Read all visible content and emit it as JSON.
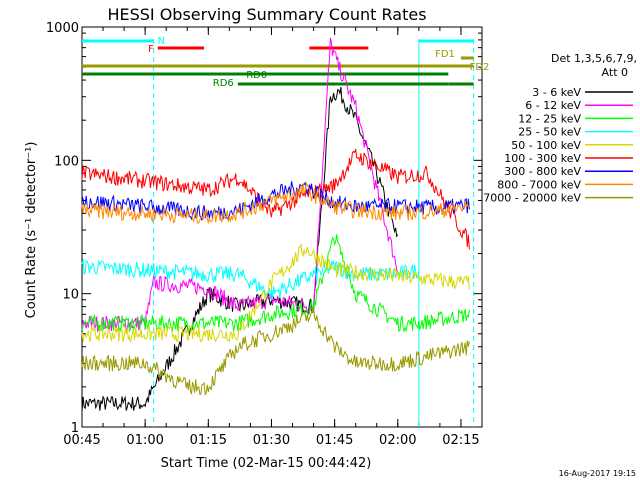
{
  "chart_data": {
    "type": "line",
    "title": "HESSI Observing Summary Count Rates",
    "xlabel": "Start Time (02-Mar-15 00:44:42)",
    "ylabel": "Count Rate (s⁻¹ detector⁻¹)",
    "xlim": [
      "00:45",
      "02:20"
    ],
    "ylim": [
      1,
      1000
    ],
    "y_scale": "log",
    "grid": false,
    "legend_position": "right",
    "x_ticks": [
      "00:45",
      "01:00",
      "01:15",
      "01:30",
      "01:45",
      "02:00",
      "02:15"
    ],
    "y_ticks": [
      "1",
      "10",
      "100",
      "1000"
    ],
    "legend_title": "Det 1,3,5,6,7,9,",
    "legend_subtitle": "Att 0",
    "series": [
      {
        "name": "3 - 6 keV",
        "color": "#000000",
        "x": [
          "00:45",
          "01:00",
          "01:15",
          "01:22",
          "01:30",
          "01:40",
          "01:44",
          "01:46",
          "01:50",
          "01:55",
          "02:00"
        ],
        "values": [
          1.5,
          1.5,
          10,
          8,
          9,
          8,
          300,
          330,
          200,
          80,
          25
        ]
      },
      {
        "name": "6 - 12 keV",
        "color": "#ff00ff",
        "x": [
          "00:45",
          "01:00",
          "01:02",
          "01:15",
          "01:22",
          "01:30",
          "01:40",
          "01:44",
          "01:46",
          "01:50",
          "01:55",
          "02:00"
        ],
        "values": [
          6,
          6,
          12,
          11,
          8,
          9,
          8,
          750,
          500,
          250,
          60,
          15
        ]
      },
      {
        "name": "12 - 25 keV",
        "color": "#00ff00",
        "x": [
          "00:45",
          "01:00",
          "01:15",
          "01:22",
          "01:30",
          "01:40",
          "01:45",
          "01:50",
          "02:00",
          "02:05",
          "02:17"
        ],
        "values": [
          6,
          6,
          6,
          6,
          7,
          8,
          27,
          10,
          6,
          6,
          7
        ]
      },
      {
        "name": "25 - 50 keV",
        "color": "#00ffff",
        "x": [
          "00:45",
          "01:00",
          "01:15",
          "01:22",
          "01:30",
          "01:38",
          "01:45",
          "01:50",
          "02:00",
          "02:05"
        ],
        "values": [
          16,
          15,
          14,
          14,
          10,
          13,
          16,
          14,
          14,
          15
        ]
      },
      {
        "name": "50 - 100 keV",
        "color": "#d8d800",
        "x": [
          "00:45",
          "01:00",
          "01:15",
          "01:22",
          "01:30",
          "01:38",
          "01:45",
          "02:17"
        ],
        "values": [
          5,
          5,
          5,
          5,
          12,
          22,
          15,
          12
        ]
      },
      {
        "name": "100 - 300 keV",
        "color": "#ff0000",
        "x": [
          "00:45",
          "01:00",
          "01:15",
          "01:22",
          "01:30",
          "01:38",
          "01:45",
          "01:50",
          "02:00",
          "02:07",
          "02:17"
        ],
        "values": [
          80,
          70,
          60,
          75,
          40,
          55,
          65,
          110,
          75,
          80,
          24
        ]
      },
      {
        "name": "300 - 800 keV",
        "color": "#0000ff",
        "x": [
          "00:45",
          "01:00",
          "01:15",
          "01:22",
          "01:30",
          "01:38",
          "01:45",
          "01:50",
          "02:00",
          "02:10",
          "02:17"
        ],
        "values": [
          50,
          45,
          40,
          42,
          55,
          65,
          48,
          45,
          45,
          44,
          46
        ]
      },
      {
        "name": "800 - 7000 keV",
        "color": "#ff8800",
        "x": [
          "00:45",
          "01:00",
          "01:15",
          "01:22",
          "01:30",
          "01:38",
          "01:45",
          "01:50",
          "02:00",
          "02:10",
          "02:17"
        ],
        "values": [
          42,
          40,
          38,
          40,
          50,
          60,
          45,
          42,
          40,
          42,
          45
        ]
      },
      {
        "name": "7000 - 20000 keV",
        "color": "#999900",
        "x": [
          "00:45",
          "01:00",
          "01:10",
          "01:15",
          "01:22",
          "01:30",
          "01:40",
          "01:45",
          "01:50",
          "02:00",
          "02:17"
        ],
        "values": [
          3,
          3,
          2,
          2,
          4,
          5,
          7,
          4,
          3,
          3,
          4
        ]
      }
    ],
    "flag_bars": [
      {
        "label": "N",
        "color": "#00ffff",
        "segments": [
          [
            "00:45",
            "01:02"
          ],
          [
            "02:05",
            "02:18"
          ]
        ]
      },
      {
        "label": "F",
        "color": "#ff0000",
        "segments": [
          [
            "01:03",
            "01:14"
          ],
          [
            "01:39",
            "01:53"
          ]
        ]
      },
      {
        "label": "FD1",
        "color": "#999900",
        "segments": [
          [
            "02:15",
            "02:18"
          ]
        ]
      },
      {
        "label": "FD2",
        "color": "#999900",
        "segments": [
          [
            "00:45",
            "02:18"
          ]
        ]
      },
      {
        "label": "RD0",
        "color": "#008000",
        "segments": [
          [
            "00:45",
            "02:12"
          ]
        ]
      },
      {
        "label": "RD6",
        "color": "#008000",
        "segments": [
          [
            "01:22",
            "02:12"
          ],
          [
            "02:12",
            "02:18"
          ]
        ]
      }
    ],
    "vertical_markers": [
      {
        "time": "01:02",
        "style": "dashed",
        "color": "#00ffff"
      },
      {
        "time": "02:05",
        "style": "solid",
        "color": "#00ffff"
      },
      {
        "time": "02:18",
        "style": "dashed",
        "color": "#00ffff"
      }
    ]
  },
  "footer_timestamp": "16-Aug-2017 19:15"
}
